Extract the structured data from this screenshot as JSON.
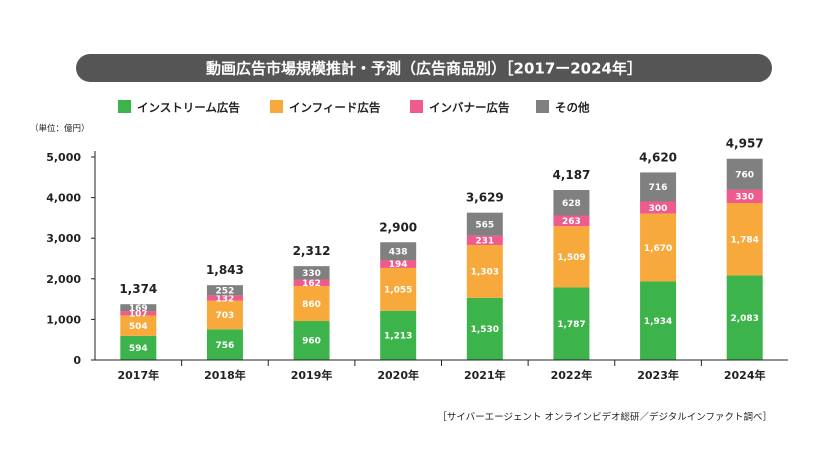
{
  "chart_data": {
    "type": "bar",
    "stacked": true,
    "title": "動画広告市場規模推計・予測（広告商品別）［2017ー2024年］",
    "unit_label": "（単位：億円）",
    "source": "［サイバーエージェント オンラインビデオ総研／デジタルインファクト調べ］",
    "categories": [
      "2017年",
      "2018年",
      "2019年",
      "2020年",
      "2021年",
      "2022年",
      "2023年",
      "2024年"
    ],
    "series": [
      {
        "name": "インストリーム広告",
        "color": "#3cb44b",
        "values": [
          594,
          756,
          960,
          1213,
          1530,
          1787,
          1934,
          2083
        ]
      },
      {
        "name": "インフィード広告",
        "color": "#f7a93c",
        "values": [
          504,
          703,
          860,
          1055,
          1303,
          1509,
          1670,
          1784
        ]
      },
      {
        "name": "インバナー広告",
        "color": "#ef5b8c",
        "values": [
          107,
          132,
          162,
          194,
          231,
          263,
          300,
          330
        ]
      },
      {
        "name": "その他",
        "color": "#808080",
        "values": [
          169,
          252,
          330,
          438,
          565,
          628,
          716,
          760
        ]
      }
    ],
    "segment_labels": [
      [
        "594",
        "756",
        "960",
        "1,213",
        "1,530",
        "1,787",
        "1,934",
        "2,083"
      ],
      [
        "504",
        "703",
        "860",
        "1,055",
        "1,303",
        "1,509",
        "1,670",
        "1,784"
      ],
      [
        "107",
        "132",
        "162",
        "194",
        "231",
        "263",
        "300",
        "330"
      ],
      [
        "169",
        "252",
        "330",
        "438",
        "565",
        "628",
        "716",
        "760"
      ]
    ],
    "totals": [
      1374,
      1843,
      2312,
      2900,
      3629,
      4187,
      4620,
      4957
    ],
    "total_labels": [
      "1,374",
      "1,843",
      "2,312",
      "2,900",
      "3,629",
      "4,187",
      "4,620",
      "4,957"
    ],
    "ylim": [
      0,
      5000
    ],
    "yticks": [
      0,
      1000,
      2000,
      3000,
      4000,
      5000
    ],
    "ytick_labels": [
      "0",
      "1,000",
      "2,000",
      "3,000",
      "4,000",
      "5,000"
    ],
    "grid": false,
    "legend_position": "top-left",
    "title_bar_color": "#555555"
  }
}
